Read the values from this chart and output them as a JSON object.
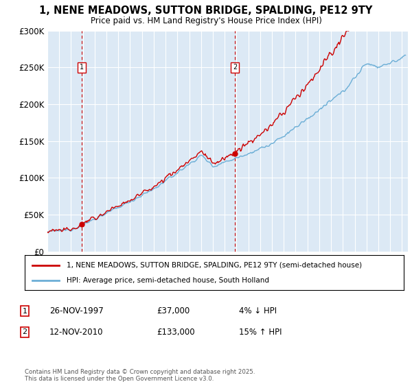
{
  "title": "1, NENE MEADOWS, SUTTON BRIDGE, SPALDING, PE12 9TY",
  "subtitle": "Price paid vs. HM Land Registry's House Price Index (HPI)",
  "ylim": [
    0,
    300000
  ],
  "yticks": [
    0,
    50000,
    100000,
    150000,
    200000,
    250000,
    300000
  ],
  "ytick_labels": [
    "£0",
    "£50K",
    "£100K",
    "£150K",
    "£200K",
    "£250K",
    "£300K"
  ],
  "bg_color": "#dce9f5",
  "grid_color": "#ffffff",
  "sale1_year": 1997.9,
  "sale1_price": 37000,
  "sale2_year": 2010.87,
  "sale2_price": 133000,
  "legend_line1": "1, NENE MEADOWS, SUTTON BRIDGE, SPALDING, PE12 9TY (semi-detached house)",
  "legend_line2": "HPI: Average price, semi-detached house, South Holland",
  "footer": "Contains HM Land Registry data © Crown copyright and database right 2025.\nThis data is licensed under the Open Government Licence v3.0.",
  "hpi_color": "#6baed6",
  "price_color": "#cc0000",
  "vline_color": "#cc0000",
  "marker_color": "#cc0000",
  "box_color": "#cc0000"
}
